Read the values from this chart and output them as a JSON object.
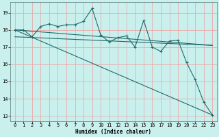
{
  "xlabel": "Humidex (Indice chaleur)",
  "bg_color": "#caf0ee",
  "grid_color": "#e8aaaa",
  "line_color": "#1a6b6b",
  "xlim": [
    -0.5,
    23.5
  ],
  "ylim": [
    12.7,
    19.6
  ],
  "xticks": [
    0,
    1,
    2,
    3,
    4,
    5,
    6,
    7,
    8,
    9,
    10,
    11,
    12,
    13,
    14,
    15,
    16,
    17,
    18,
    19,
    20,
    21,
    22,
    23
  ],
  "yticks": [
    13,
    14,
    15,
    16,
    17,
    18,
    19
  ],
  "main_x": [
    0,
    1,
    2,
    3,
    4,
    5,
    6,
    7,
    8,
    9,
    10,
    11,
    12,
    13,
    14,
    15,
    16,
    17,
    18,
    19,
    20,
    21,
    22,
    23
  ],
  "main_y": [
    18.0,
    18.0,
    17.6,
    18.2,
    18.35,
    18.2,
    18.3,
    18.3,
    18.5,
    19.25,
    17.7,
    17.3,
    17.55,
    17.65,
    17.0,
    18.55,
    17.0,
    16.75,
    17.35,
    17.4,
    16.1,
    15.1,
    13.8,
    13.05
  ],
  "line1_x": [
    0,
    23
  ],
  "line1_y": [
    18.0,
    13.05
  ],
  "line2_x": [
    0,
    23
  ],
  "line2_y": [
    18.0,
    17.1
  ],
  "line3_x": [
    0,
    23
  ],
  "line3_y": [
    17.6,
    17.1
  ],
  "xlabel_fontsize": 5.5,
  "tick_fontsize": 5.0
}
